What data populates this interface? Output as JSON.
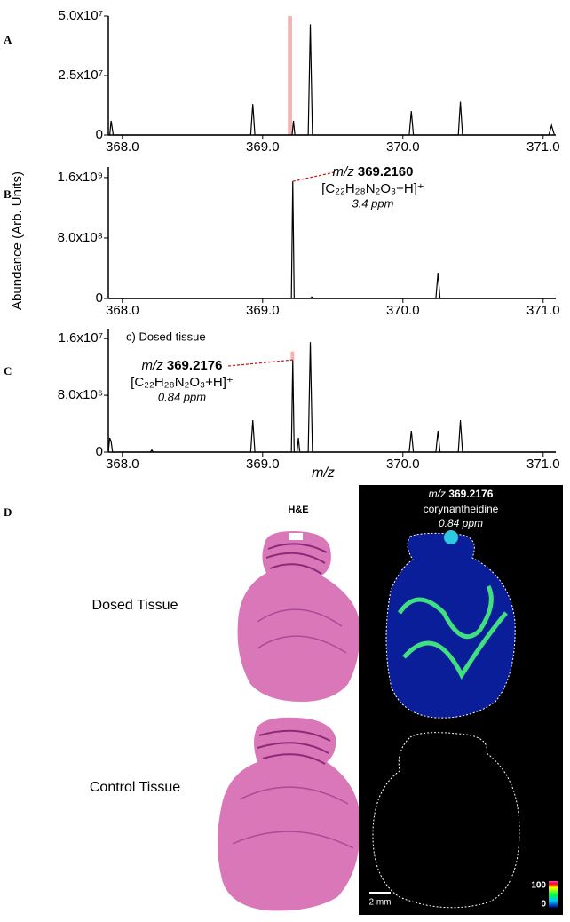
{
  "y_axis_label": "Abundance (Arb. Units)",
  "chart_data": [
    {
      "type": "line",
      "panel": "A",
      "color": "#000",
      "x": [
        367.9,
        367.91,
        367.92,
        367.935,
        368.915,
        368.93,
        368.945,
        369.21,
        369.22,
        369.23,
        369.325,
        369.34,
        369.355,
        370.045,
        370.06,
        370.075,
        370.395,
        370.41,
        370.425,
        371.04,
        371.06,
        371.08
      ],
      "values": [
        0,
        0,
        6000000,
        0,
        0,
        13000000,
        0,
        0,
        6000000,
        0,
        0,
        46500000,
        0,
        0,
        10000000,
        0,
        0,
        14000000,
        0,
        0,
        4000000,
        0
      ],
      "xlim": [
        367.9,
        371.09
      ],
      "xticks": [
        {
          "value": 368,
          "label": "368.0"
        },
        {
          "value": 369,
          "label": "369.0"
        },
        {
          "value": 370,
          "label": "370.0"
        },
        {
          "value": 371,
          "label": "371.0"
        }
      ],
      "ylim": [
        0,
        50000000
      ],
      "yticks": [
        0,
        {
          "value": 25000000,
          "label": "2.5x10⁷"
        },
        {
          "value": 50000000,
          "label": "5.0x10⁷"
        }
      ],
      "highlight": {
        "x": [
          369.18,
          369.21
        ],
        "color": "#f4b4b4"
      }
    },
    {
      "type": "line",
      "panel": "B",
      "color": "#000",
      "x": [
        367.9,
        369.205,
        369.215,
        369.225,
        369.34,
        369.35,
        369.36,
        370.235,
        370.25,
        370.265,
        371.09
      ],
      "values": [
        0,
        0,
        1550000000,
        0,
        0,
        20000000,
        0,
        0,
        340000000,
        0,
        0
      ],
      "xlim": [
        367.9,
        371.09
      ],
      "xticks": [
        {
          "value": 368,
          "label": "368.0"
        },
        {
          "value": 369,
          "label": "369.0"
        },
        {
          "value": 370,
          "label": "370.0"
        },
        {
          "value": 371,
          "label": "371.0"
        }
      ],
      "ylim": [
        0,
        1740000000
      ],
      "yticks": [
        0,
        {
          "value": 800000000,
          "label": "8.0x10⁸"
        },
        {
          "value": 1600000000,
          "label": "1.6x10⁹"
        }
      ],
      "annotation": {
        "prefix": "m/z",
        "mz": "369.2160",
        "formula": "[C₂₂H₂₈N₂O₃+H]⁺",
        "ppm": "3.4 ppm"
      }
    },
    {
      "type": "line",
      "panel": "C",
      "color": "#000",
      "subtitle": "c) Dosed tissue",
      "x_axis_label": "m/z",
      "x": [
        367.9,
        367.91,
        367.92,
        367.93,
        368.2,
        368.21,
        368.22,
        368.915,
        368.93,
        368.945,
        369.205,
        369.215,
        369.225,
        369.245,
        369.255,
        369.265,
        369.325,
        369.34,
        369.355,
        370.045,
        370.06,
        370.075,
        370.235,
        370.25,
        370.265,
        370.395,
        370.41,
        370.425,
        371.09
      ],
      "values": [
        0,
        2000000,
        1500000,
        0,
        0,
        300000,
        0,
        0,
        4500000,
        0,
        0,
        13000000,
        0,
        0,
        2000000,
        0,
        0,
        15500000,
        0,
        0,
        3000000,
        0,
        0,
        3000000,
        0,
        0,
        4500000,
        0,
        0
      ],
      "xlim": [
        367.9,
        371.09
      ],
      "xticks": [
        {
          "value": 368,
          "label": "368.0"
        },
        {
          "value": 369,
          "label": "369.0"
        },
        {
          "value": 370,
          "label": "370.0"
        },
        {
          "value": 371,
          "label": "371.0"
        }
      ],
      "ylim": [
        0,
        17400000
      ],
      "yticks": [
        0,
        {
          "value": 8000000,
          "label": "8.0x10⁶"
        },
        {
          "value": 16000000,
          "label": "1.6x10⁷"
        }
      ],
      "highlight": {
        "x": [
          369.2,
          369.225
        ],
        "y": [
          13000000,
          14200000
        ],
        "color": "#f4b4b4"
      },
      "annotation": {
        "prefix": "m/z",
        "mz": "369.2176",
        "formula": "[C₂₂H₂₈N₂O₃+H]⁺",
        "ppm": "0.84 ppm"
      }
    }
  ],
  "panel_d": {
    "letter": "D",
    "he_title": "H&E",
    "rows": [
      "Dosed Tissue",
      "Control Tissue"
    ],
    "image_title": {
      "prefix": "m/z",
      "mz": "369.2176",
      "compound": "corynantheidine",
      "ppm": "0.84 ppm"
    },
    "scale_bar": "2 mm",
    "colorbar": [
      "100",
      "0"
    ]
  }
}
